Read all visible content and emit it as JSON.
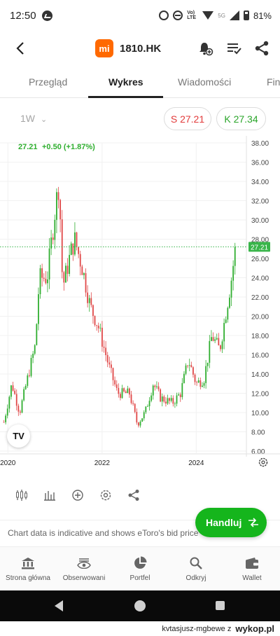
{
  "status_bar": {
    "time": "12:50",
    "lte": "Vo) LTE",
    "network": "5G",
    "battery": "81%"
  },
  "header": {
    "logo_text": "mi",
    "ticker": "1810.HK"
  },
  "tabs": [
    {
      "label": "Przegląd"
    },
    {
      "label": "Wykres"
    },
    {
      "label": "Wiadomości"
    },
    {
      "label": "Fina"
    }
  ],
  "controls": {
    "interval": "1W",
    "sell": "S 27.21",
    "buy": "K 27.34"
  },
  "quote": {
    "price": "27.21",
    "change": "+0.50 (+1.87%)",
    "current_label": "27.21"
  },
  "chart_data": {
    "type": "candlestick",
    "y_ticks": [
      "38.00",
      "36.00",
      "34.00",
      "32.00",
      "30.00",
      "28.00",
      "26.00",
      "24.00",
      "22.00",
      "20.00",
      "18.00",
      "16.00",
      "14.00",
      "12.00",
      "10.00",
      "8.00",
      "6.00"
    ],
    "x_ticks": [
      "2020",
      "2022",
      "2024"
    ],
    "ylim": [
      6,
      38
    ],
    "current_price": 27.21,
    "trend_points": [
      {
        "x": "2019-12",
        "y": 9.0
      },
      {
        "x": "2020-02",
        "y": 13.0
      },
      {
        "x": "2020-04",
        "y": 10.0
      },
      {
        "x": "2020-06",
        "y": 13.5
      },
      {
        "x": "2020-08",
        "y": 17.0
      },
      {
        "x": "2020-09",
        "y": 24.0
      },
      {
        "x": "2020-11",
        "y": 24.0
      },
      {
        "x": "2021-01",
        "y": 31.0
      },
      {
        "x": "2021-02",
        "y": 34.0
      },
      {
        "x": "2021-03",
        "y": 23.0
      },
      {
        "x": "2021-05",
        "y": 26.5
      },
      {
        "x": "2021-06",
        "y": 28.0
      },
      {
        "x": "2021-08",
        "y": 25.0
      },
      {
        "x": "2021-10",
        "y": 21.0
      },
      {
        "x": "2021-12",
        "y": 19.0
      },
      {
        "x": "2022-03",
        "y": 14.5
      },
      {
        "x": "2022-05",
        "y": 12.0
      },
      {
        "x": "2022-08",
        "y": 12.0
      },
      {
        "x": "2022-10",
        "y": 8.8
      },
      {
        "x": "2022-12",
        "y": 10.0
      },
      {
        "x": "2023-02",
        "y": 13.0
      },
      {
        "x": "2023-04",
        "y": 11.5
      },
      {
        "x": "2023-07",
        "y": 11.0
      },
      {
        "x": "2023-09",
        "y": 12.0
      },
      {
        "x": "2023-11",
        "y": 15.5
      },
      {
        "x": "2024-01",
        "y": 13.0
      },
      {
        "x": "2024-03",
        "y": 13.5
      },
      {
        "x": "2024-05",
        "y": 18.0
      },
      {
        "x": "2024-07",
        "y": 16.5
      },
      {
        "x": "2024-08",
        "y": 19.0
      },
      {
        "x": "2024-10",
        "y": 24.0
      },
      {
        "x": "2024-11",
        "y": 27.21
      }
    ],
    "colors": {
      "up": "#2fae2f",
      "down": "#e04848",
      "current_line": "#39b54a"
    }
  },
  "toolbar": {
    "icons": [
      "candles-icon",
      "bars-icon",
      "add-indicator-icon",
      "settings-icon",
      "share-icon"
    ]
  },
  "trade_button": {
    "label": "Handluj"
  },
  "disclaimer": "Chart data is indicative and shows eToro's bid price",
  "bottom_nav": [
    {
      "label": "Strona główna",
      "icon": "bank-icon"
    },
    {
      "label": "Obserwowani",
      "icon": "eye-icon"
    },
    {
      "label": "Portfel",
      "icon": "pie-icon"
    },
    {
      "label": "Odkryj",
      "icon": "search-icon"
    },
    {
      "label": "Wallet",
      "icon": "wallet-icon"
    }
  ],
  "watermark": {
    "user": "kvtasjusz-mgbewe z",
    "site": "wykop.pl"
  }
}
